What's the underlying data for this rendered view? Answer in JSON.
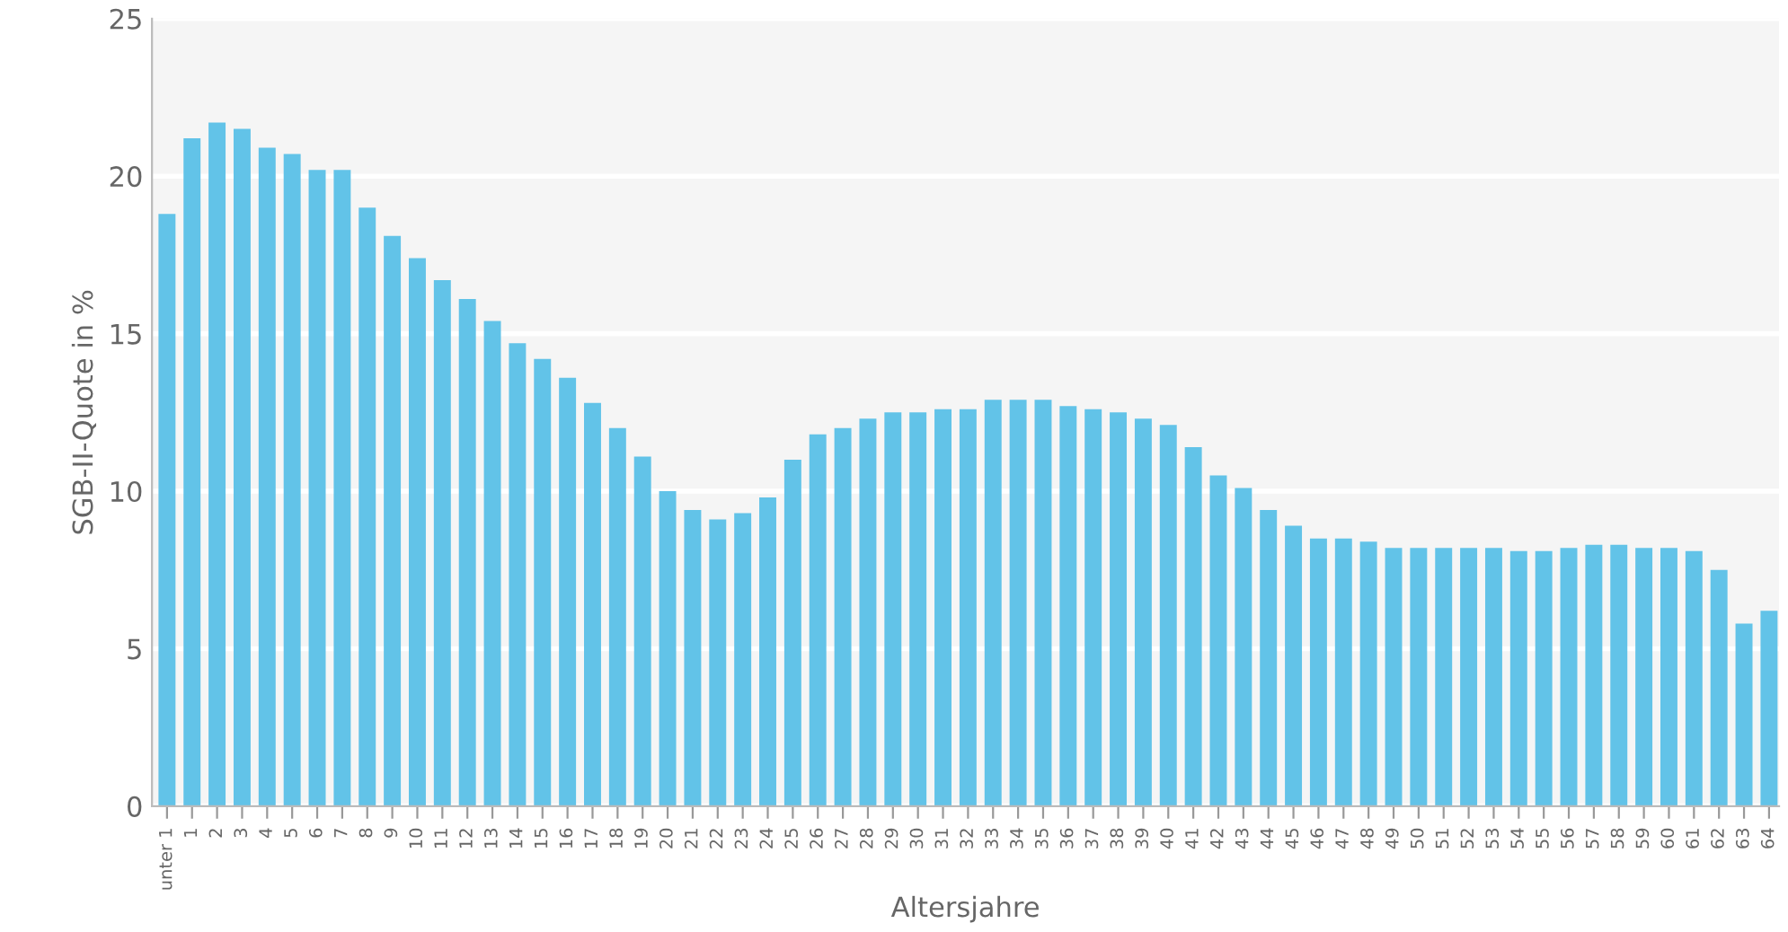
{
  "chart_data": {
    "type": "bar",
    "xlabel": "Altersjahre",
    "ylabel": "SGB-II-Quote in %",
    "categories": [
      "unter 1",
      "1",
      "2",
      "3",
      "4",
      "5",
      "6",
      "7",
      "8",
      "9",
      "10",
      "11",
      "12",
      "13",
      "14",
      "15",
      "16",
      "17",
      "18",
      "19",
      "20",
      "21",
      "22",
      "23",
      "24",
      "25",
      "26",
      "27",
      "28",
      "29",
      "30",
      "31",
      "32",
      "33",
      "34",
      "35",
      "36",
      "37",
      "38",
      "39",
      "40",
      "41",
      "42",
      "43",
      "44",
      "45",
      "46",
      "47",
      "48",
      "49",
      "50",
      "51",
      "52",
      "53",
      "54",
      "55",
      "56",
      "57",
      "58",
      "59",
      "60",
      "61",
      "62",
      "63",
      "64"
    ],
    "values": [
      18.8,
      21.2,
      21.7,
      21.5,
      20.9,
      20.7,
      20.2,
      20.2,
      19.0,
      18.1,
      17.4,
      16.7,
      16.1,
      15.4,
      14.7,
      14.2,
      13.6,
      12.8,
      12.0,
      11.1,
      10.0,
      9.4,
      9.1,
      9.3,
      9.8,
      11.0,
      11.8,
      12.0,
      12.3,
      12.5,
      12.5,
      12.6,
      12.6,
      12.9,
      12.9,
      12.9,
      12.7,
      12.6,
      12.5,
      12.3,
      12.1,
      11.4,
      10.5,
      10.1,
      9.4,
      8.9,
      8.5,
      8.5,
      8.4,
      8.2,
      8.2,
      8.2,
      8.2,
      8.2,
      8.1,
      8.1,
      8.2,
      8.3,
      8.3,
      8.2,
      8.2,
      8.1,
      7.5,
      5.8,
      6.2
    ],
    "color": "#62c3e8",
    "ylim": [
      0,
      25
    ],
    "yticks": [
      0,
      5,
      10,
      15,
      20,
      25
    ],
    "grid": "y"
  }
}
